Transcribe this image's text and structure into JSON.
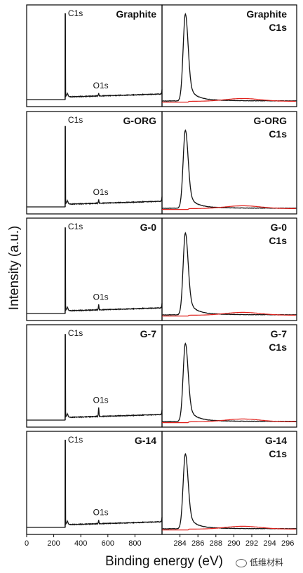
{
  "figure": {
    "ylabel": "Intensity (a.u.)",
    "xlabel": "Binding energy (eV)",
    "watermark": "低维材料",
    "colors": {
      "main_trace": "#111111",
      "fit_trace": "#e0201b",
      "axis": "#000000"
    }
  },
  "chart_data": [
    {
      "type": "line",
      "panel": "survey",
      "title": "Graphite",
      "peak_labels": [
        "C1s",
        "O1s"
      ],
      "xlim": [
        0,
        1000
      ],
      "xticks": [
        0,
        200,
        400,
        600,
        800
      ],
      "peaks": [
        {
          "name": "C1s",
          "x": 284.6,
          "height": 1.0
        },
        {
          "name": "O1s",
          "x": 532,
          "height": 0.03
        }
      ]
    },
    {
      "type": "line",
      "panel": "high-resolution",
      "title": "Graphite",
      "subtitle": "C1s",
      "xlim": [
        282,
        297
      ],
      "xticks": [
        284,
        286,
        288,
        290,
        292,
        294,
        296
      ],
      "series": [
        {
          "name": "C1s",
          "peak_x": 284.6,
          "height": 0.92
        },
        {
          "name": "satellite",
          "peak_x": 291,
          "height": 0.03,
          "color": "#e0201b"
        }
      ]
    },
    {
      "type": "line",
      "panel": "survey",
      "title": "G-ORG",
      "peak_labels": [
        "C1s",
        "O1s"
      ],
      "xlim": [
        0,
        1000
      ],
      "xticks": [
        0,
        200,
        400,
        600,
        800
      ],
      "peaks": [
        {
          "name": "C1s",
          "x": 284.6,
          "height": 0.93
        },
        {
          "name": "O1s",
          "x": 532,
          "height": 0.04
        }
      ]
    },
    {
      "type": "line",
      "panel": "high-resolution",
      "title": "G-ORG",
      "subtitle": "C1s",
      "xlim": [
        282,
        297
      ],
      "xticks": [
        284,
        286,
        288,
        290,
        292,
        294,
        296
      ],
      "series": [
        {
          "name": "C1s",
          "peak_x": 284.6,
          "height": 0.82
        },
        {
          "name": "satellite",
          "peak_x": 291,
          "height": 0.03,
          "color": "#e0201b"
        }
      ]
    },
    {
      "type": "line",
      "panel": "survey",
      "title": "G-0",
      "peak_labels": [
        "C1s",
        "O1s"
      ],
      "xlim": [
        0,
        1000
      ],
      "xticks": [
        0,
        200,
        400,
        600,
        800
      ],
      "peaks": [
        {
          "name": "C1s",
          "x": 284.6,
          "height": 0.99
        },
        {
          "name": "O1s",
          "x": 532,
          "height": 0.06
        }
      ]
    },
    {
      "type": "line",
      "panel": "high-resolution",
      "title": "G-0",
      "subtitle": "C1s",
      "xlim": [
        282,
        297
      ],
      "xticks": [
        284,
        286,
        288,
        290,
        292,
        294,
        296
      ],
      "series": [
        {
          "name": "C1s",
          "peak_x": 284.6,
          "height": 0.86
        },
        {
          "name": "satellite",
          "peak_x": 291,
          "height": 0.03,
          "color": "#e0201b"
        }
      ]
    },
    {
      "type": "line",
      "panel": "survey",
      "title": "G-7",
      "peak_labels": [
        "C1s",
        "O1s"
      ],
      "xlim": [
        0,
        1000
      ],
      "xticks": [
        0,
        200,
        400,
        600,
        800
      ],
      "peaks": [
        {
          "name": "C1s",
          "x": 284.6,
          "height": 0.99
        },
        {
          "name": "O1s",
          "x": 532,
          "height": 0.1
        }
      ]
    },
    {
      "type": "line",
      "panel": "high-resolution",
      "title": "G-7",
      "subtitle": "C1s",
      "xlim": [
        282,
        297
      ],
      "xticks": [
        284,
        286,
        288,
        290,
        292,
        294,
        296
      ],
      "series": [
        {
          "name": "C1s",
          "peak_x": 284.6,
          "height": 0.82
        },
        {
          "name": "satellite",
          "peak_x": 291,
          "height": 0.03,
          "color": "#e0201b"
        }
      ]
    },
    {
      "type": "line",
      "panel": "survey",
      "title": "G-14",
      "peak_labels": [
        "C1s",
        "O1s"
      ],
      "xlim": [
        0,
        1000
      ],
      "xticks": [
        0,
        200,
        400,
        600,
        800
      ],
      "peaks": [
        {
          "name": "C1s",
          "x": 284.6,
          "height": 1.0
        },
        {
          "name": "O1s",
          "x": 532,
          "height": 0.04
        }
      ]
    },
    {
      "type": "line",
      "panel": "high-resolution",
      "title": "G-14",
      "subtitle": "C1s",
      "xlim": [
        282,
        297
      ],
      "xticks": [
        284,
        286,
        288,
        290,
        292,
        294,
        296
      ],
      "series": [
        {
          "name": "C1s",
          "peak_x": 284.6,
          "height": 0.78
        },
        {
          "name": "satellite",
          "peak_x": 291,
          "height": 0.03,
          "color": "#e0201b"
        }
      ]
    }
  ]
}
